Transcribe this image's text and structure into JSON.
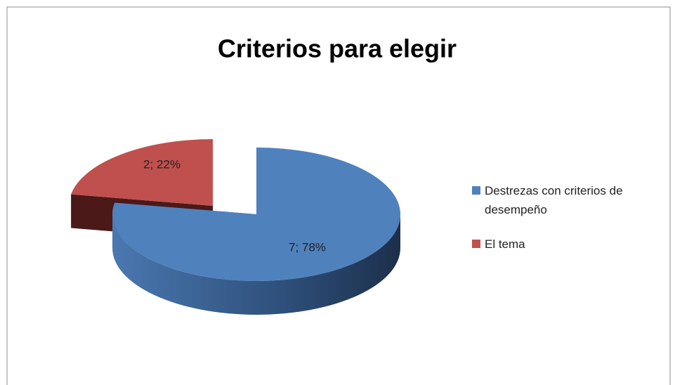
{
  "chart_data": {
    "type": "pie",
    "title": "Criterios para elegir",
    "categories": [
      "Destrezas con criterios de desempeño",
      "El tema"
    ],
    "values": [
      7,
      2
    ],
    "value_labels": [
      "7; 78%",
      "2; 22%"
    ],
    "colors": [
      "#4f81bd",
      "#c0504d"
    ],
    "legend": "right"
  }
}
